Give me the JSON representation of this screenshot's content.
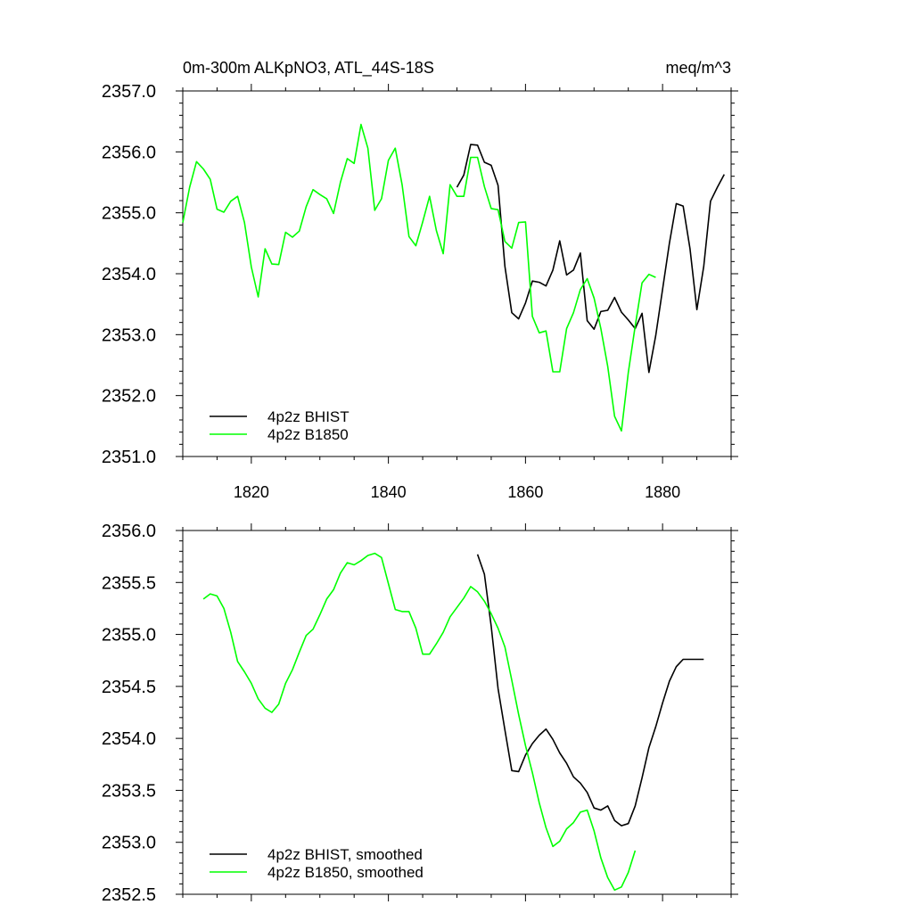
{
  "chart_data": [
    {
      "type": "line",
      "title_left": "0m-300m ALKpNO3, ATL_44S-18S",
      "title_right": "meq/m^3",
      "xlim": [
        1810,
        1890
      ],
      "ylim": [
        2351.0,
        2357.0
      ],
      "x_ticks": [
        1820,
        1840,
        1860,
        1880
      ],
      "x_tick_labels": [
        "1820",
        "1840",
        "1860",
        "1880"
      ],
      "y_ticks": [
        2351.0,
        2352.0,
        2353.0,
        2354.0,
        2355.0,
        2356.0,
        2357.0
      ],
      "y_tick_labels": [
        "2351.0",
        "2352.0",
        "2353.0",
        "2354.0",
        "2355.0",
        "2356.0",
        "2357.0"
      ],
      "legend_position": "bottom-left",
      "series": [
        {
          "name": "4p2z BHIST",
          "color": "#000000",
          "x": [
            1850,
            1851,
            1852,
            1853,
            1854,
            1855,
            1856,
            1857,
            1858,
            1859,
            1860,
            1861,
            1862,
            1863,
            1864,
            1865,
            1866,
            1867,
            1868,
            1869,
            1870,
            1871,
            1872,
            1873,
            1874,
            1875,
            1876,
            1877,
            1878,
            1879,
            1880,
            1881,
            1882,
            1883,
            1884,
            1885,
            1886,
            1887,
            1888,
            1889
          ],
          "y": [
            2355.42,
            2355.62,
            2356.12,
            2356.11,
            2355.83,
            2355.78,
            2355.45,
            2354.12,
            2353.36,
            2353.26,
            2353.52,
            2353.88,
            2353.86,
            2353.8,
            2354.06,
            2354.54,
            2353.98,
            2354.06,
            2354.34,
            2353.23,
            2353.09,
            2353.38,
            2353.4,
            2353.61,
            2353.37,
            2353.24,
            2353.1,
            2353.35,
            2352.38,
            2352.98,
            2353.74,
            2354.5,
            2355.15,
            2355.11,
            2354.41,
            2353.41,
            2354.12,
            2355.19,
            2355.42,
            2355.63
          ]
        },
        {
          "name": "4p2z B1850",
          "color": "#00ff00",
          "x": [
            1810,
            1811,
            1812,
            1813,
            1814,
            1815,
            1816,
            1817,
            1818,
            1819,
            1820,
            1821,
            1822,
            1823,
            1824,
            1825,
            1826,
            1827,
            1828,
            1829,
            1830,
            1831,
            1832,
            1833,
            1834,
            1835,
            1836,
            1837,
            1838,
            1839,
            1840,
            1841,
            1842,
            1843,
            1844,
            1845,
            1846,
            1847,
            1848,
            1849,
            1850,
            1851,
            1852,
            1853,
            1854,
            1855,
            1856,
            1857,
            1858,
            1859,
            1860,
            1861,
            1862,
            1863,
            1864,
            1865,
            1866,
            1867,
            1868,
            1869,
            1870,
            1871,
            1872,
            1873,
            1874,
            1875,
            1876,
            1877,
            1878,
            1879
          ],
          "y": [
            2354.84,
            2355.42,
            2355.84,
            2355.72,
            2355.55,
            2355.06,
            2355.01,
            2355.19,
            2355.27,
            2354.84,
            2354.11,
            2353.62,
            2354.41,
            2354.16,
            2354.15,
            2354.68,
            2354.6,
            2354.7,
            2355.1,
            2355.38,
            2355.3,
            2355.23,
            2354.99,
            2355.5,
            2355.89,
            2355.81,
            2356.45,
            2356.06,
            2355.04,
            2355.23,
            2355.86,
            2356.06,
            2355.46,
            2354.61,
            2354.46,
            2354.85,
            2355.27,
            2354.71,
            2354.33,
            2355.46,
            2355.27,
            2355.27,
            2355.91,
            2355.91,
            2355.43,
            2355.07,
            2355.05,
            2354.53,
            2354.42,
            2354.84,
            2354.85,
            2353.3,
            2353.03,
            2353.06,
            2352.39,
            2352.39,
            2353.1,
            2353.36,
            2353.74,
            2353.92,
            2353.6,
            2353.1,
            2352.48,
            2351.66,
            2351.42,
            2352.38,
            2353.14,
            2353.85,
            2353.99,
            2353.94
          ]
        }
      ]
    },
    {
      "type": "line",
      "xlim": [
        1810,
        1890
      ],
      "ylim": [
        2352.5,
        2356.0
      ],
      "x_ticks": [
        1820,
        1840,
        1860,
        1880
      ],
      "y_ticks": [
        2352.5,
        2353.0,
        2353.5,
        2354.0,
        2354.5,
        2355.0,
        2355.5,
        2356.0
      ],
      "y_tick_labels": [
        "2352.5",
        "2353.0",
        "2353.5",
        "2354.0",
        "2354.5",
        "2355.0",
        "2355.5",
        "2356.0"
      ],
      "legend_position": "bottom-left",
      "series": [
        {
          "name": "4p2z BHIST, smoothed",
          "color": "#000000",
          "x": [
            1853,
            1854,
            1855,
            1856,
            1857,
            1858,
            1859,
            1860,
            1861,
            1862,
            1863,
            1864,
            1865,
            1866,
            1867,
            1868,
            1869,
            1870,
            1871,
            1872,
            1873,
            1874,
            1875,
            1876,
            1877,
            1878,
            1879,
            1880,
            1881,
            1882,
            1883,
            1884,
            1885,
            1886
          ],
          "y": [
            2355.77,
            2355.58,
            2355.08,
            2354.48,
            2354.08,
            2353.69,
            2353.68,
            2353.84,
            2353.95,
            2354.03,
            2354.09,
            2353.99,
            2353.86,
            2353.76,
            2353.63,
            2353.57,
            2353.48,
            2353.33,
            2353.31,
            2353.35,
            2353.21,
            2353.16,
            2353.18,
            2353.35,
            2353.62,
            2353.91,
            2354.11,
            2354.34,
            2354.55,
            2354.69,
            2354.76,
            2354.76,
            2354.76,
            2354.76
          ]
        },
        {
          "name": "4p2z B1850, smoothed",
          "color": "#00ff00",
          "x": [
            1813,
            1814,
            1815,
            1816,
            1817,
            1818,
            1819,
            1820,
            1821,
            1822,
            1823,
            1824,
            1825,
            1826,
            1827,
            1828,
            1829,
            1830,
            1831,
            1832,
            1833,
            1834,
            1835,
            1836,
            1837,
            1838,
            1839,
            1840,
            1841,
            1842,
            1843,
            1844,
            1845,
            1846,
            1847,
            1848,
            1849,
            1850,
            1851,
            1852,
            1853,
            1854,
            1855,
            1856,
            1857,
            1858,
            1859,
            1860,
            1861,
            1862,
            1863,
            1864,
            1865,
            1866,
            1867,
            1868,
            1869,
            1870,
            1871,
            1872,
            1873,
            1874,
            1875,
            1876
          ],
          "y": [
            2355.34,
            2355.39,
            2355.37,
            2355.25,
            2355.02,
            2354.74,
            2354.64,
            2354.53,
            2354.38,
            2354.29,
            2354.25,
            2354.33,
            2354.53,
            2354.66,
            2354.83,
            2354.99,
            2355.05,
            2355.19,
            2355.34,
            2355.43,
            2355.59,
            2355.69,
            2355.67,
            2355.71,
            2355.76,
            2355.78,
            2355.74,
            2355.49,
            2355.24,
            2355.22,
            2355.22,
            2355.06,
            2354.81,
            2354.81,
            2354.91,
            2355.02,
            2355.17,
            2355.26,
            2355.35,
            2355.46,
            2355.41,
            2355.32,
            2355.2,
            2355.06,
            2354.88,
            2354.56,
            2354.23,
            2353.93,
            2353.67,
            2353.38,
            2353.14,
            2352.96,
            2353.01,
            2353.13,
            2353.19,
            2353.29,
            2353.31,
            2353.11,
            2352.85,
            2352.66,
            2352.54,
            2352.57,
            2352.71,
            2352.92
          ]
        }
      ]
    }
  ]
}
